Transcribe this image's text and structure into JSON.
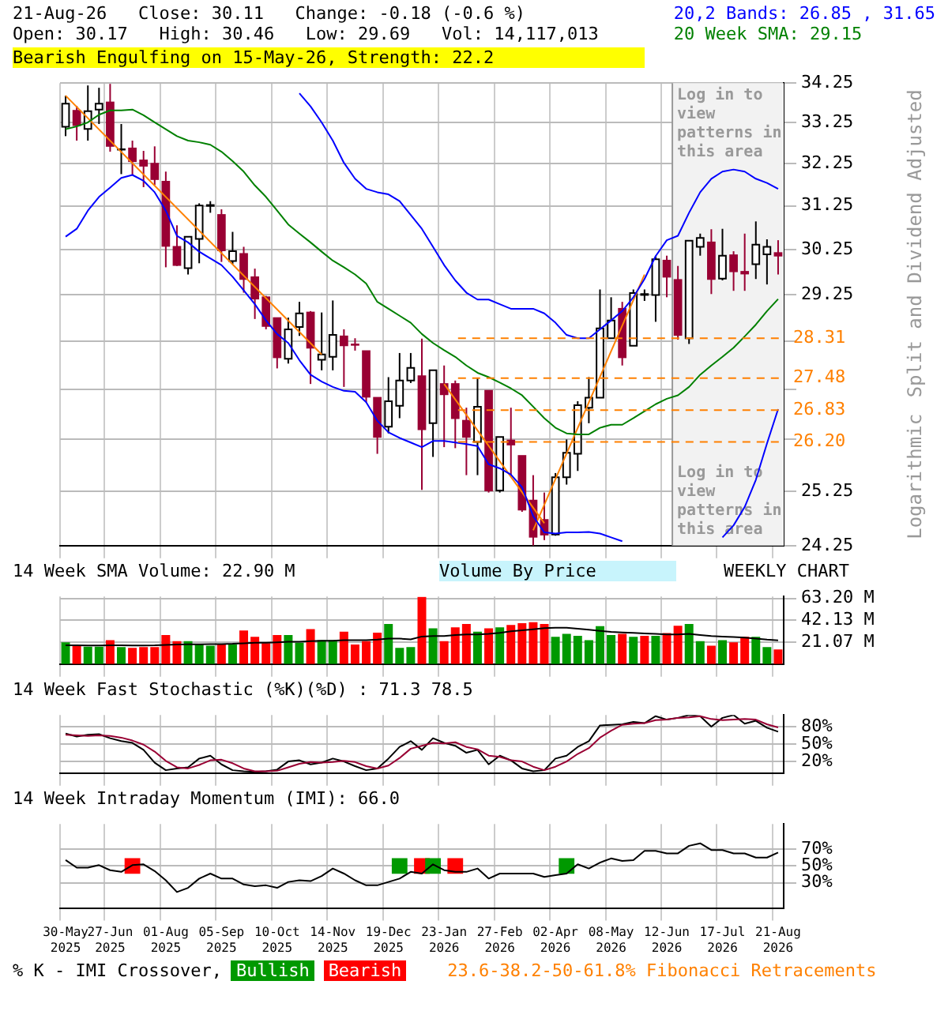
{
  "chart_data": [
    {
      "type": "candlestick",
      "title": "21-Aug-26   Close: 30.11   Change: -0.18 (-0.6 %)",
      "subtitle": "Open: 30.17   High: 30.46   Low: 29.69   Vol: 14,117,013",
      "ylabel": "Split and Dividend Adjusted",
      "annotations": [
        "20,2 Bands: 26.85 , 31.65",
        "20 Week SMA: 29.15",
        "Bearish Engulfing on 15-May-26, Strength: 22.2",
        "Logarithmic",
        "Log in to view patterns in this area"
      ],
      "categories": [
        "30-May 2025",
        null,
        null,
        null,
        "27-Jun 2025",
        null,
        null,
        null,
        null,
        "01-Aug 2025",
        null,
        null,
        null,
        null,
        "05-Sep 2025",
        null,
        null,
        null,
        null,
        "10-Oct 2025",
        null,
        null,
        null,
        null,
        "14-Nov 2025",
        null,
        null,
        null,
        null,
        "19-Dec 2025",
        null,
        null,
        null,
        null,
        "23-Jan 2026",
        null,
        null,
        null,
        null,
        "27-Feb 2026",
        null,
        null,
        null,
        null,
        "02-Apr 2026",
        null,
        null,
        null,
        null,
        "08-May 2026",
        null,
        null,
        null,
        null,
        "12-Jun 2026",
        null,
        null,
        null,
        null,
        "17-Jul 2026",
        null,
        null,
        null,
        null,
        "21-Aug 2026"
      ],
      "ohlc": [
        [
          33.15,
          33.93,
          32.92,
          33.73
        ],
        [
          33.55,
          33.67,
          32.81,
          33.19
        ],
        [
          33.1,
          34.19,
          32.81,
          33.54
        ],
        [
          33.58,
          34.13,
          33.22,
          33.73
        ],
        [
          33.76,
          34.23,
          32.54,
          32.68
        ],
        [
          32.59,
          33.22,
          32.0,
          32.6
        ],
        [
          32.62,
          32.81,
          31.98,
          32.31
        ],
        [
          32.33,
          32.56,
          31.69,
          32.2
        ],
        [
          32.25,
          32.67,
          31.74,
          31.88
        ],
        [
          31.82,
          32.06,
          29.85,
          30.33
        ],
        [
          30.31,
          30.8,
          29.88,
          29.9
        ],
        [
          29.83,
          30.54,
          29.69,
          30.54
        ],
        [
          30.49,
          31.31,
          29.94,
          31.26
        ],
        [
          31.25,
          31.36,
          31.09,
          31.27
        ],
        [
          31.04,
          31.17,
          29.97,
          30.23
        ],
        [
          29.99,
          30.65,
          29.92,
          30.21
        ],
        [
          30.15,
          30.31,
          29.29,
          29.59
        ],
        [
          29.63,
          29.82,
          28.72,
          29.16
        ],
        [
          29.19,
          29.22,
          28.5,
          28.57
        ],
        [
          28.74,
          28.75,
          27.68,
          27.91
        ],
        [
          27.88,
          28.75,
          27.78,
          28.5
        ],
        [
          28.55,
          29.09,
          28.36,
          28.84
        ],
        [
          28.86,
          28.89,
          27.36,
          28.11
        ],
        [
          27.86,
          28.86,
          27.64,
          27.97
        ],
        [
          27.92,
          29.12,
          27.64,
          28.38
        ],
        [
          28.35,
          28.5,
          27.3,
          28.16
        ],
        [
          28.18,
          28.31,
          28.05,
          28.17
        ],
        [
          28.04,
          28.04,
          26.99,
          27.1
        ],
        [
          27.08,
          27.08,
          25.97,
          26.3
        ],
        [
          26.5,
          27.5,
          26.37,
          27.01
        ],
        [
          26.92,
          28.0,
          26.67,
          27.43
        ],
        [
          27.43,
          28.0,
          27.38,
          27.69
        ],
        [
          27.52,
          28.3,
          25.28,
          26.45
        ],
        [
          26.57,
          27.64,
          25.91,
          27.64
        ],
        [
          27.36,
          27.74,
          26.1,
          27.15
        ],
        [
          27.36,
          27.43,
          26.08,
          26.67
        ],
        [
          26.62,
          26.88,
          25.56,
          26.3
        ],
        [
          26.2,
          27.48,
          25.56,
          26.9
        ],
        [
          27.22,
          27.22,
          25.23,
          25.27
        ],
        [
          25.27,
          26.3,
          25.23,
          26.3
        ],
        [
          26.23,
          26.88,
          25.56,
          26.15
        ],
        [
          25.93,
          25.93,
          24.87,
          24.91
        ],
        [
          25.08,
          25.56,
          24.25,
          24.41
        ],
        [
          24.72,
          25.23,
          24.35,
          24.45
        ],
        [
          24.45,
          25.6,
          24.43,
          25.52
        ],
        [
          25.52,
          26.25,
          25.38,
          25.99
        ],
        [
          25.97,
          27.01,
          25.64,
          26.93
        ],
        [
          26.88,
          27.5,
          26.57,
          27.08
        ],
        [
          27.08,
          29.36,
          27.08,
          28.52
        ],
        [
          28.31,
          29.19,
          28.31,
          28.69
        ],
        [
          28.94,
          29.09,
          27.74,
          27.91
        ],
        [
          28.15,
          29.36,
          28.15,
          29.28
        ],
        [
          29.24,
          29.36,
          29.11,
          29.26
        ],
        [
          29.24,
          30.11,
          28.66,
          30.03
        ],
        [
          30.0,
          30.11,
          29.19,
          29.64
        ],
        [
          29.57,
          29.88,
          28.28,
          28.38
        ],
        [
          28.31,
          30.45,
          28.19,
          30.45
        ],
        [
          30.31,
          30.61,
          30.11,
          30.51
        ],
        [
          30.41,
          30.71,
          29.26,
          29.59
        ],
        [
          29.6,
          30.72,
          29.56,
          30.11
        ],
        [
          30.12,
          30.21,
          29.33,
          29.76
        ],
        [
          29.75,
          30.61,
          29.33,
          29.71
        ],
        [
          29.92,
          30.89,
          29.59,
          30.36
        ],
        [
          30.14,
          30.48,
          29.47,
          30.31
        ],
        [
          30.17,
          30.46,
          29.69,
          30.11
        ]
      ],
      "series": [
        {
          "type": "line",
          "color": "#0000ff",
          "values": [
            null,
            null,
            null,
            null,
            null,
            null,
            null,
            null,
            null,
            null,
            null,
            null,
            null,
            null,
            null,
            null,
            null,
            null,
            null,
            null,
            null,
            33.99,
            33.66,
            33.26,
            32.81,
            32.27,
            31.89,
            31.65,
            31.57,
            31.52,
            31.36,
            31.04,
            30.72,
            30.31,
            29.9,
            29.56,
            29.29,
            29.14,
            29.14,
            29.04,
            28.94,
            28.94,
            28.94,
            28.84,
            28.64,
            28.38,
            28.31,
            28.31,
            28.5,
            28.69,
            28.89,
            29.19,
            29.59,
            30.1,
            30.46,
            30.56,
            31.09,
            31.57,
            31.89,
            32.06,
            32.11,
            32.06,
            31.89,
            31.79,
            31.65
          ]
        },
        {
          "type": "line",
          "color": "#0000ff",
          "values": [
            30.54,
            30.72,
            31.14,
            31.46,
            31.68,
            31.91,
            31.98,
            31.84,
            31.57,
            31.14,
            30.56,
            30.41,
            30.2,
            30.05,
            29.9,
            29.64,
            29.34,
            29.04,
            28.69,
            28.4,
            28.21,
            27.85,
            27.55,
            27.41,
            27.3,
            27.22,
            27.2,
            26.99,
            26.62,
            26.39,
            26.28,
            26.19,
            26.1,
            26.22,
            26.22,
            26.19,
            26.16,
            26.12,
            25.77,
            25.69,
            25.57,
            25.33,
            24.79,
            24.49,
            24.47,
            24.49,
            24.49,
            24.5,
            24.47,
            24.4,
            24.33,
            null,
            null,
            null,
            null,
            null,
            null,
            null,
            null,
            null,
            null,
            null,
            null,
            null,
            null
          ]
        },
        {
          "type": "line",
          "color": "#0000ff",
          "values": [
            null,
            null,
            null,
            null,
            null,
            null,
            null,
            null,
            null,
            null,
            null,
            null,
            null,
            null,
            null,
            null,
            null,
            null,
            null,
            null,
            null,
            null,
            null,
            null,
            null,
            null,
            null,
            null,
            null,
            null,
            null,
            null,
            null,
            null,
            null,
            null,
            null,
            null,
            null,
            null,
            null,
            null,
            null,
            null,
            null,
            null,
            null,
            null,
            null,
            null,
            null,
            null,
            null,
            null,
            null,
            null,
            null,
            null,
            null,
            24.4,
            24.62,
            24.96,
            25.47,
            26.17,
            26.85
          ]
        },
        {
          "type": "line",
          "color": "#008000",
          "values": [
            33.09,
            33.16,
            33.26,
            33.45,
            33.56,
            33.56,
            33.58,
            33.44,
            33.26,
            33.09,
            32.92,
            32.81,
            32.77,
            32.71,
            32.54,
            32.31,
            32.06,
            31.73,
            31.46,
            31.14,
            30.82,
            30.61,
            30.41,
            30.2,
            30.0,
            29.85,
            29.69,
            29.49,
            29.09,
            28.94,
            28.79,
            28.64,
            28.4,
            28.21,
            28.06,
            27.92,
            27.74,
            27.59,
            27.5,
            27.39,
            27.27,
            27.13,
            26.9,
            26.67,
            26.48,
            26.37,
            26.35,
            26.35,
            26.48,
            26.54,
            26.54,
            26.67,
            26.81,
            26.95,
            27.06,
            27.13,
            27.3,
            27.55,
            27.74,
            27.92,
            28.11,
            28.35,
            28.6,
            28.89,
            29.15
          ]
        },
        {
          "type": "line",
          "color": "#ff8000",
          "values": [
            33.93,
            null,
            null,
            null,
            null,
            null,
            null,
            null,
            null,
            null,
            null,
            null,
            null,
            null,
            null,
            null,
            null,
            null,
            null,
            null,
            null,
            null,
            null,
            27.97,
            null,
            null,
            null,
            null,
            null,
            null,
            null,
            null,
            null,
            null,
            null,
            null,
            null,
            null,
            null,
            null,
            null,
            null,
            null,
            null,
            null,
            null,
            null,
            null,
            null,
            null,
            null,
            null,
            null,
            null,
            null,
            null,
            null,
            null,
            null,
            null,
            null,
            null,
            null,
            null,
            null
          ]
        },
        {
          "type": "line",
          "color": "#ff8000",
          "values": [
            null,
            null,
            null,
            null,
            null,
            null,
            null,
            null,
            null,
            null,
            null,
            null,
            null,
            null,
            null,
            null,
            null,
            null,
            null,
            null,
            null,
            null,
            null,
            null,
            null,
            null,
            null,
            null,
            null,
            null,
            null,
            null,
            null,
            null,
            27.36,
            null,
            null,
            null,
            null,
            null,
            null,
            null,
            null,
            24.66,
            null,
            null,
            null,
            null,
            null,
            null,
            null,
            null,
            null,
            null,
            null,
            null,
            null,
            null,
            null,
            null,
            null,
            null,
            null,
            null,
            null
          ]
        },
        {
          "type": "line",
          "color": "#ff8000",
          "values": [
            null,
            null,
            null,
            null,
            null,
            null,
            null,
            null,
            null,
            null,
            null,
            null,
            null,
            null,
            null,
            null,
            null,
            null,
            null,
            null,
            null,
            null,
            null,
            null,
            null,
            null,
            null,
            null,
            null,
            null,
            null,
            null,
            null,
            null,
            null,
            null,
            null,
            null,
            null,
            null,
            null,
            null,
            24.53,
            null,
            null,
            null,
            null,
            null,
            null,
            null,
            null,
            null,
            29.69,
            null,
            null,
            null,
            null,
            null,
            null,
            null,
            null,
            null,
            null,
            null,
            null
          ]
        }
      ],
      "log": true,
      "ylim": [
        24.25,
        34.25
      ],
      "yticks": [
        24.25,
        25.25,
        {
          "value": 26.25,
          "label": null
        },
        {
          "value": 27.25,
          "label": null
        },
        {
          "value": 28.25,
          "label": null
        },
        29.25,
        30.25,
        31.25,
        32.25,
        33.25,
        34.25
      ],
      "ref_lines": [
        {
          "axis": "y",
          "value": 28.31,
          "label": "28.31",
          "color": "#ff8000",
          "line_style": "dashed"
        },
        {
          "axis": "y",
          "value": 27.48,
          "label": "27.48",
          "color": "#ff8000",
          "line_style": "dashed"
        },
        {
          "axis": "y",
          "value": 26.83,
          "label": "26.83",
          "color": "#ff8000",
          "line_style": "dashed"
        },
        {
          "axis": "y",
          "value": 26.2,
          "label": "26.20",
          "color": "#ff8000",
          "line_style": "dashed"
        }
      ],
      "bands": [
        {
          "axis": "x",
          "from": "12-Jun 2026",
          "to": "21-Aug 2026",
          "label": "Log in to view patterns in this area",
          "color": "#f2f2f2"
        }
      ],
      "grid": true,
      "tick_labels": "y",
      "legend": false
    },
    {
      "type": "bar",
      "title": "14 Week SMA Volume: 22.90 M",
      "annotations": [
        "Volume By Price",
        "WEEKLY CHART"
      ],
      "categories": [
        "30-May 2025",
        null,
        null,
        null,
        "27-Jun 2025",
        null,
        null,
        null,
        null,
        "01-Aug 2025",
        null,
        null,
        null,
        null,
        "05-Sep 2025",
        null,
        null,
        null,
        null,
        "10-Oct 2025",
        null,
        null,
        null,
        null,
        "14-Nov 2025",
        null,
        null,
        null,
        null,
        "19-Dec 2025",
        null,
        null,
        null,
        null,
        "23-Jan 2026",
        null,
        null,
        null,
        null,
        "27-Feb 2026",
        null,
        null,
        null,
        null,
        "02-Apr 2026",
        null,
        null,
        null,
        null,
        "08-May 2026",
        null,
        null,
        null,
        null,
        "12-Jun 2026",
        null,
        null,
        null,
        null,
        "17-Jul 2026",
        null,
        null,
        null,
        null,
        "21-Aug 2026"
      ],
      "series": [
        {
          "type": "bar",
          "colors": [
            "#009900",
            "#ff0000",
            "#009900",
            "#009900",
            "#ff0000",
            "#009900",
            "#ff0000",
            "#ff0000",
            "#ff0000",
            "#ff0000",
            "#ff0000",
            "#009900",
            "#009900",
            "#009900",
            "#ff0000",
            "#009900",
            "#ff0000",
            "#ff0000",
            "#ff0000",
            "#ff0000",
            "#009900",
            "#009900",
            "#ff0000",
            "#009900",
            "#009900",
            "#ff0000",
            "#ff0000",
            "#ff0000",
            "#ff0000",
            "#009900",
            "#009900",
            "#009900",
            "#ff0000",
            "#009900",
            "#ff0000",
            "#ff0000",
            "#ff0000",
            "#009900",
            "#ff0000",
            "#009900",
            "#ff0000",
            "#ff0000",
            "#ff0000",
            "#ff0000",
            "#009900",
            "#009900",
            "#009900",
            "#009900",
            "#009900",
            "#009900",
            "#ff0000",
            "#009900",
            "#ff0000",
            "#009900",
            "#ff0000",
            "#ff0000",
            "#009900",
            "#009900",
            "#ff0000",
            "#009900",
            "#ff0000",
            "#ff0000",
            "#009900",
            "#009900",
            "#ff0000"
          ],
          "values": [
            20.9,
            18.0,
            16.8,
            16.8,
            23.0,
            16.4,
            15.6,
            16.4,
            16.4,
            27.9,
            22.1,
            22.1,
            18.9,
            17.6,
            18.9,
            18.9,
            32.4,
            26.2,
            20.1,
            27.9,
            27.9,
            20.5,
            33.6,
            23.0,
            23.0,
            31.2,
            18.9,
            22.1,
            30.3,
            38.5,
            15.6,
            16.4,
            64.5,
            34.4,
            22.1,
            35.3,
            38.5,
            31.2,
            34.4,
            35.3,
            37.7,
            39.4,
            40.2,
            38.5,
            26.2,
            29.1,
            27.1,
            23.0,
            36.5,
            27.9,
            29.1,
            26.2,
            27.1,
            27.1,
            29.9,
            36.9,
            38.5,
            22.1,
            17.6,
            23.0,
            20.9,
            26.2,
            26.2,
            16.4,
            14.1
          ]
        },
        {
          "type": "line",
          "color": "#000000",
          "values": [
            18.0,
            18.0,
            17.8,
            17.8,
            18.0,
            18.0,
            17.8,
            17.8,
            18.0,
            18.5,
            18.9,
            19.0,
            19.0,
            19.2,
            19.3,
            19.5,
            20.0,
            20.5,
            20.5,
            21.0,
            21.5,
            21.5,
            22.0,
            22.5,
            22.5,
            23.0,
            23.0,
            23.0,
            23.5,
            24.5,
            24.5,
            23.8,
            26.5,
            27.0,
            27.0,
            28.0,
            28.5,
            28.5,
            29.0,
            30.0,
            31.5,
            32.5,
            33.5,
            34.5,
            35.0,
            35.0,
            34.0,
            33.0,
            32.0,
            31.0,
            30.5,
            30.0,
            29.5,
            29.0,
            28.5,
            28.5,
            29.0,
            28.0,
            27.0,
            26.5,
            26.0,
            25.5,
            24.5,
            23.5,
            22.9
          ]
        }
      ],
      "ylim": [
        0,
        65
      ],
      "yticks": [
        {
          "value": 21.07,
          "label": "21.07 M"
        },
        {
          "value": 42.13,
          "label": "42.13 M"
        },
        {
          "value": 63.2,
          "label": "63.20 M"
        }
      ],
      "grid": true,
      "tick_labels": "y",
      "legend": false
    },
    {
      "type": "line",
      "title": "14 Week Fast Stochastic (%K)(%D) : 71.3 78.5",
      "categories": [
        "30-May 2025",
        null,
        null,
        null,
        "27-Jun 2025",
        null,
        null,
        null,
        null,
        "01-Aug 2025",
        null,
        null,
        null,
        null,
        "05-Sep 2025",
        null,
        null,
        null,
        null,
        "10-Oct 2025",
        null,
        null,
        null,
        null,
        "14-Nov 2025",
        null,
        null,
        null,
        null,
        "19-Dec 2025",
        null,
        null,
        null,
        null,
        "23-Jan 2026",
        null,
        null,
        null,
        null,
        "27-Feb 2026",
        null,
        null,
        null,
        null,
        "02-Apr 2026",
        null,
        null,
        null,
        null,
        "08-May 2026",
        null,
        null,
        null,
        null,
        "12-Jun 2026",
        null,
        null,
        null,
        null,
        "17-Jul 2026",
        null,
        null,
        null,
        null,
        "21-Aug 2026"
      ],
      "series": [
        {
          "type": "line",
          "color": "#990033",
          "values": [
            66,
            65,
            64,
            65,
            64,
            61,
            56,
            49,
            37,
            21,
            10,
            8,
            14,
            22,
            23,
            17,
            8,
            3,
            3,
            4,
            10,
            16,
            19,
            18,
            19,
            21,
            19,
            12,
            8,
            13,
            26,
            42,
            47,
            52,
            51,
            53,
            45,
            41,
            30,
            28,
            22,
            20,
            11,
            5,
            11,
            20,
            33,
            43,
            61,
            73,
            83,
            85,
            86,
            91,
            92,
            95,
            96,
            98,
            93,
            91,
            92,
            93,
            92,
            84,
            78.5
          ]
        },
        {
          "type": "line",
          "color": "#000000",
          "values": [
            68,
            63,
            66,
            67,
            60,
            55,
            52,
            40,
            18,
            5,
            8,
            10,
            25,
            30,
            15,
            5,
            3,
            2,
            3,
            6,
            20,
            22,
            15,
            18,
            25,
            20,
            12,
            5,
            8,
            25,
            45,
            55,
            40,
            60,
            52,
            47,
            35,
            40,
            15,
            30,
            22,
            8,
            3,
            5,
            25,
            30,
            45,
            55,
            82,
            83,
            84,
            88,
            86,
            98,
            92,
            95,
            100,
            98,
            80,
            95,
            100,
            85,
            90,
            78,
            71.3
          ]
        }
      ],
      "ylim": [
        0,
        100
      ],
      "yticks": [
        {
          "value": 20,
          "label": "20%"
        },
        {
          "value": 50,
          "label": "50%"
        },
        {
          "value": 80,
          "label": "80%"
        }
      ],
      "grid": true,
      "tick_labels": "y",
      "legend": false
    },
    {
      "type": "line",
      "title": "14 Week Intraday Momentum (IMI): 66.0",
      "legend_title": "% K - IMI Crossover,",
      "annotations": [
        "23.6-38.2-50-61.8% Fibonacci Retracements"
      ],
      "categories": [
        "30-May 2025",
        null,
        null,
        null,
        "27-Jun 2025",
        null,
        null,
        null,
        null,
        "01-Aug 2025",
        null,
        null,
        null,
        null,
        "05-Sep 2025",
        null,
        null,
        null,
        null,
        "10-Oct 2025",
        null,
        null,
        null,
        null,
        "14-Nov 2025",
        null,
        null,
        null,
        null,
        "19-Dec 2025",
        null,
        null,
        null,
        null,
        "23-Jan 2026",
        null,
        null,
        null,
        null,
        "27-Feb 2026",
        null,
        null,
        null,
        null,
        "02-Apr 2026",
        null,
        null,
        null,
        null,
        "08-May 2026",
        null,
        null,
        null,
        null,
        "12-Jun 2026",
        null,
        null,
        null,
        null,
        "17-Jul 2026",
        null,
        null,
        null,
        null,
        "21-Aug 2026"
      ],
      "series": [
        {
          "type": "line",
          "color": "#000000",
          "values": [
            57,
            48,
            48,
            51,
            45,
            43,
            51,
            52,
            44,
            33,
            19,
            24,
            35,
            41,
            35,
            35,
            28,
            26,
            27,
            24,
            31,
            33,
            32,
            38,
            47,
            41,
            33,
            27,
            27,
            31,
            35,
            43,
            41,
            52,
            45,
            43,
            43,
            47,
            35,
            41,
            41,
            41,
            41,
            37,
            39,
            41,
            52,
            47,
            54,
            59,
            56,
            57,
            68,
            68,
            65,
            65,
            74,
            77,
            69,
            69,
            65,
            65,
            60,
            60,
            66.0
          ]
        },
        {
          "type": "scatter",
          "name": "Bullish",
          "color": "#009900",
          "marker": "square",
          "values": [
            null,
            null,
            null,
            null,
            null,
            null,
            null,
            null,
            null,
            null,
            null,
            null,
            null,
            null,
            null,
            null,
            null,
            null,
            null,
            null,
            null,
            null,
            null,
            null,
            null,
            null,
            null,
            null,
            null,
            null,
            50,
            null,
            null,
            50,
            null,
            null,
            null,
            null,
            null,
            null,
            null,
            null,
            null,
            null,
            null,
            50,
            null,
            null,
            null,
            null,
            null,
            null,
            null,
            null,
            null,
            null,
            null,
            null,
            null,
            null,
            null,
            null,
            null,
            null,
            null
          ]
        },
        {
          "type": "scatter",
          "name": "Bearish",
          "color": "#ff0000",
          "marker": "square",
          "values": [
            null,
            null,
            null,
            null,
            null,
            null,
            50,
            null,
            null,
            null,
            null,
            null,
            null,
            null,
            null,
            null,
            null,
            null,
            null,
            null,
            null,
            null,
            null,
            null,
            null,
            null,
            null,
            null,
            null,
            null,
            null,
            null,
            50,
            null,
            null,
            50,
            null,
            null,
            null,
            null,
            null,
            null,
            null,
            null,
            null,
            null,
            null,
            null,
            null,
            null,
            null,
            null,
            null,
            null,
            null,
            null,
            null,
            null,
            null,
            null,
            null,
            null,
            null,
            null,
            null
          ]
        }
      ],
      "ylim": [
        0,
        100
      ],
      "yticks": [
        {
          "value": 30,
          "label": "30%"
        },
        {
          "value": 50,
          "label": "50%"
        },
        {
          "value": 70,
          "label": "70%"
        }
      ],
      "grid": true,
      "legend": "bottom"
    }
  ]
}
